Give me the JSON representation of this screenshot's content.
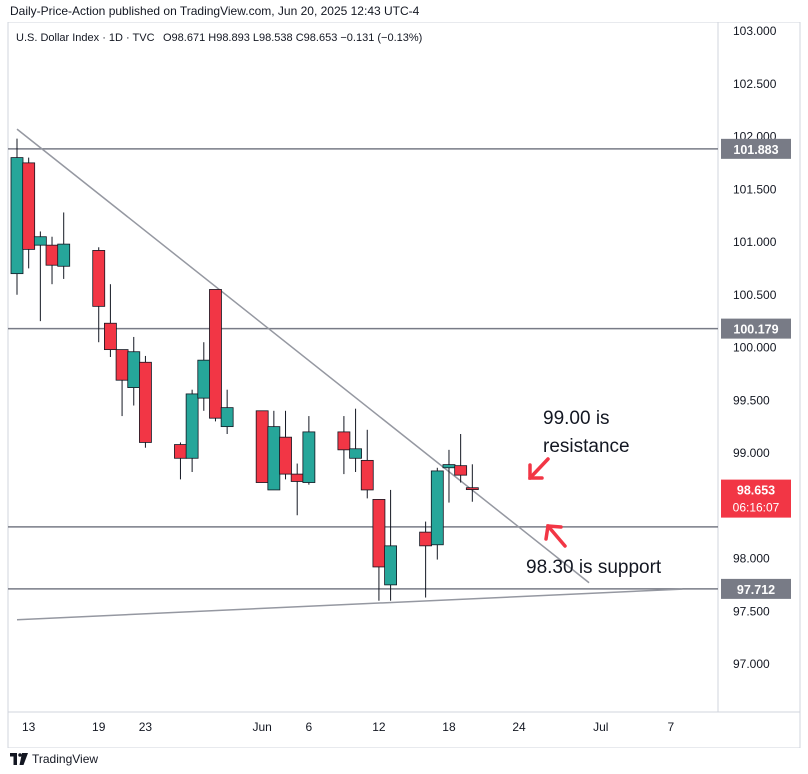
{
  "header": {
    "published": "Daily-Price-Action published on TradingView.com, Jun 20, 2025 12:43 UTC-4"
  },
  "legend": {
    "symbol": "U.S. Dollar Index · 1D · TVC",
    "ohlc": "O98.671  H98.893  L98.538  C98.653  −0.131 (−0.13%)"
  },
  "footer": {
    "brand": "TradingView"
  },
  "colors": {
    "up": "#26a69a",
    "down": "#f23645",
    "line": "#9598a1",
    "hline": "#787b86",
    "label_bg": "#787b86",
    "price_bg": "#f23645"
  },
  "chart_data": {
    "type": "candlestick",
    "title": "U.S. Dollar Index · 1D · TVC",
    "ylim": [
      96.5,
      103.1
    ],
    "y_ticks": [
      "103.000",
      "102.500",
      "102.000",
      "101.500",
      "101.000",
      "100.500",
      "100.000",
      "99.500",
      "99.000",
      "98.500",
      "98.000",
      "97.500",
      "97.000"
    ],
    "y_tick_values": [
      103.0,
      102.5,
      102.0,
      101.5,
      101.0,
      100.5,
      100.0,
      99.5,
      99.0,
      98.5,
      98.0,
      97.5,
      97.0
    ],
    "x_ticks": [
      {
        "label": "13",
        "date": "2025-05-13"
      },
      {
        "label": "19",
        "date": "2025-05-19"
      },
      {
        "label": "23",
        "date": "2025-05-23"
      },
      {
        "label": "Jun",
        "date": "2025-06-02"
      },
      {
        "label": "6",
        "date": "2025-06-06"
      },
      {
        "label": "12",
        "date": "2025-06-12"
      },
      {
        "label": "18",
        "date": "2025-06-18"
      },
      {
        "label": "24",
        "date": "2025-06-24"
      },
      {
        "label": "Jul",
        "date": "2025-07-01"
      },
      {
        "label": "7",
        "date": "2025-07-07"
      }
    ],
    "candles": [
      {
        "date": "2025-05-12",
        "open": 100.7,
        "high": 101.98,
        "low": 100.5,
        "close": 101.8
      },
      {
        "date": "2025-05-13",
        "open": 101.75,
        "high": 101.8,
        "low": 100.75,
        "close": 100.93
      },
      {
        "date": "2025-05-14",
        "open": 100.97,
        "high": 101.1,
        "low": 100.25,
        "close": 101.05
      },
      {
        "date": "2025-05-15",
        "open": 100.97,
        "high": 101.05,
        "low": 100.6,
        "close": 100.78
      },
      {
        "date": "2025-05-16",
        "open": 100.77,
        "high": 101.28,
        "low": 100.65,
        "close": 100.98
      },
      {
        "date": "2025-05-19",
        "open": 100.92,
        "high": 100.95,
        "low": 100.05,
        "close": 100.39
      },
      {
        "date": "2025-05-20",
        "open": 100.23,
        "high": 100.6,
        "low": 99.91,
        "close": 99.98
      },
      {
        "date": "2025-05-21",
        "open": 99.98,
        "high": 99.98,
        "low": 99.35,
        "close": 99.69
      },
      {
        "date": "2025-05-22",
        "open": 99.62,
        "high": 100.1,
        "low": 99.45,
        "close": 99.96
      },
      {
        "date": "2025-05-23",
        "open": 99.86,
        "high": 99.92,
        "low": 99.05,
        "close": 99.1
      },
      {
        "date": "2025-05-26",
        "open": 99.08,
        "high": 99.1,
        "low": 98.75,
        "close": 98.95
      },
      {
        "date": "2025-05-27",
        "open": 98.95,
        "high": 99.6,
        "low": 98.82,
        "close": 99.56
      },
      {
        "date": "2025-05-28",
        "open": 99.52,
        "high": 100.05,
        "low": 99.4,
        "close": 99.88
      },
      {
        "date": "2025-05-29",
        "open": 100.55,
        "high": 100.55,
        "low": 99.3,
        "close": 99.33
      },
      {
        "date": "2025-05-30",
        "open": 99.25,
        "high": 99.6,
        "low": 99.18,
        "close": 99.43
      },
      {
        "date": "2025-06-02",
        "open": 99.4,
        "high": 99.4,
        "low": 98.72,
        "close": 98.72
      },
      {
        "date": "2025-06-03",
        "open": 98.65,
        "high": 99.4,
        "low": 98.65,
        "close": 99.25
      },
      {
        "date": "2025-06-04",
        "open": 99.15,
        "high": 99.4,
        "low": 98.75,
        "close": 98.8
      },
      {
        "date": "2025-06-05",
        "open": 98.8,
        "high": 98.9,
        "low": 98.41,
        "close": 98.73
      },
      {
        "date": "2025-06-06",
        "open": 98.72,
        "high": 99.35,
        "low": 98.7,
        "close": 99.2
      },
      {
        "date": "2025-06-09",
        "open": 99.2,
        "high": 99.35,
        "low": 98.8,
        "close": 99.03
      },
      {
        "date": "2025-06-10",
        "open": 98.95,
        "high": 99.42,
        "low": 98.82,
        "close": 99.04
      },
      {
        "date": "2025-06-11",
        "open": 98.93,
        "high": 99.22,
        "low": 98.57,
        "close": 98.65
      },
      {
        "date": "2025-06-12",
        "open": 98.56,
        "high": 98.56,
        "low": 97.6,
        "close": 97.92
      },
      {
        "date": "2025-06-13",
        "open": 97.75,
        "high": 98.65,
        "low": 97.6,
        "close": 98.12
      },
      {
        "date": "2025-06-16",
        "open": 98.25,
        "high": 98.35,
        "low": 97.63,
        "close": 98.12
      },
      {
        "date": "2025-06-17",
        "open": 98.13,
        "high": 98.86,
        "low": 97.99,
        "close": 98.83
      },
      {
        "date": "2025-06-18",
        "open": 98.86,
        "high": 99.03,
        "low": 98.53,
        "close": 98.89
      },
      {
        "date": "2025-06-19",
        "open": 98.88,
        "high": 99.18,
        "low": 98.72,
        "close": 98.79
      },
      {
        "date": "2025-06-20",
        "open": 98.671,
        "high": 98.893,
        "low": 98.538,
        "close": 98.653
      }
    ],
    "horizontal_lines": [
      {
        "value": 101.883,
        "label": "101.883"
      },
      {
        "value": 100.179,
        "label": "100.179"
      },
      {
        "value": 98.3,
        "label": ""
      },
      {
        "value": 97.712,
        "label": "97.712"
      }
    ],
    "trend_lines": [
      {
        "start": {
          "date": "2025-05-12",
          "price": 102.07
        },
        "end": {
          "date": "2025-06-30",
          "price": 97.77
        }
      },
      {
        "start": {
          "date": "2025-05-12",
          "price": 97.42
        },
        "end": {
          "date": "2025-07-08",
          "price": 97.71
        }
      }
    ],
    "last_price": {
      "value": "98.653",
      "countdown": "06:16:07"
    },
    "annotations": [
      {
        "text": "99.00 is resistance",
        "lines": [
          "99.00 is",
          "resistance"
        ]
      },
      {
        "text": "98.30 is support",
        "lines": [
          "98.30 is support"
        ]
      }
    ]
  }
}
